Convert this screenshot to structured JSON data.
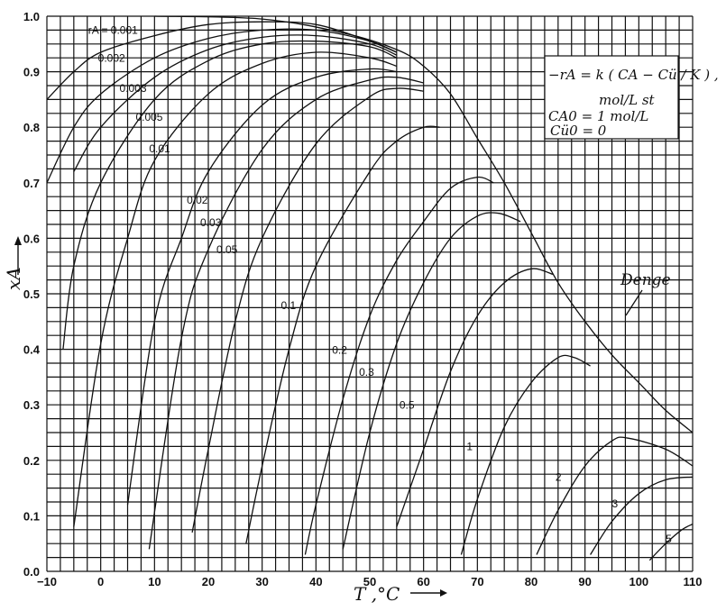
{
  "chart_data": {
    "type": "line",
    "xlabel": "T ,°C",
    "ylabel": "xA",
    "xlim": [
      -10,
      110
    ],
    "ylim": [
      0,
      1.0
    ],
    "xticks": [
      "−10",
      "0",
      "10",
      "20",
      "30",
      "40",
      "50",
      "60",
      "70",
      "80",
      "90",
      "100",
      "110"
    ],
    "yticks": [
      "0.0",
      "0.1",
      "0.2",
      "0.3",
      "0.4",
      "0.5",
      "0.6",
      "0.7",
      "0.8",
      "0.9",
      "1.0"
    ],
    "equilibrium": {
      "label": "Denge",
      "points": [
        [
          10,
          1.0
        ],
        [
          30,
          0.995
        ],
        [
          45,
          0.97
        ],
        [
          55,
          0.94
        ],
        [
          60,
          0.91
        ],
        [
          65,
          0.86
        ],
        [
          70,
          0.78
        ],
        [
          75,
          0.7
        ],
        [
          80,
          0.61
        ],
        [
          85,
          0.52
        ],
        [
          90,
          0.45
        ],
        [
          95,
          0.39
        ],
        [
          100,
          0.34
        ],
        [
          105,
          0.29
        ],
        [
          110,
          0.25
        ]
      ]
    },
    "series": [
      {
        "name": "−rA = 0.001",
        "label": "−rA = 0.001",
        "points": [
          [
            -10,
            0.85
          ],
          [
            -5,
            0.9
          ],
          [
            0,
            0.935
          ],
          [
            10,
            0.965
          ],
          [
            20,
            0.985
          ],
          [
            30,
            0.99
          ],
          [
            40,
            0.985
          ],
          [
            50,
            0.955
          ],
          [
            55,
            0.935
          ]
        ]
      },
      {
        "name": "0.002",
        "label": "0.002",
        "points": [
          [
            -10,
            0.7
          ],
          [
            -5,
            0.8
          ],
          [
            0,
            0.86
          ],
          [
            10,
            0.925
          ],
          [
            20,
            0.96
          ],
          [
            30,
            0.975
          ],
          [
            40,
            0.975
          ],
          [
            50,
            0.955
          ],
          [
            55,
            0.935
          ]
        ]
      },
      {
        "name": "0.003",
        "label": "0.003",
        "points": [
          [
            -5,
            0.72
          ],
          [
            0,
            0.8
          ],
          [
            10,
            0.89
          ],
          [
            20,
            0.94
          ],
          [
            30,
            0.962
          ],
          [
            40,
            0.965
          ],
          [
            50,
            0.95
          ],
          [
            55,
            0.93
          ]
        ]
      },
      {
        "name": "0.005",
        "label": "0.005",
        "points": [
          [
            -7,
            0.4
          ],
          [
            -5,
            0.55
          ],
          [
            0,
            0.7
          ],
          [
            10,
            0.85
          ],
          [
            20,
            0.92
          ],
          [
            30,
            0.95
          ],
          [
            40,
            0.955
          ],
          [
            50,
            0.945
          ],
          [
            55,
            0.925
          ]
        ]
      },
      {
        "name": "0.01",
        "label": "0.01",
        "points": [
          [
            -5,
            0.08
          ],
          [
            0,
            0.41
          ],
          [
            5,
            0.6
          ],
          [
            10,
            0.74
          ],
          [
            20,
            0.86
          ],
          [
            30,
            0.915
          ],
          [
            40,
            0.935
          ],
          [
            50,
            0.925
          ],
          [
            55,
            0.91
          ]
        ]
      },
      {
        "name": "0.02",
        "label": "0.02",
        "points": [
          [
            5,
            0.12
          ],
          [
            10,
            0.45
          ],
          [
            15,
            0.6
          ],
          [
            20,
            0.72
          ],
          [
            30,
            0.84
          ],
          [
            40,
            0.89
          ],
          [
            50,
            0.905
          ],
          [
            55,
            0.9
          ]
        ]
      },
      {
        "name": "0.03",
        "label": "0.03",
        "points": [
          [
            9,
            0.04
          ],
          [
            15,
            0.42
          ],
          [
            20,
            0.58
          ],
          [
            30,
            0.76
          ],
          [
            40,
            0.85
          ],
          [
            50,
            0.885
          ],
          [
            55,
            0.89
          ],
          [
            60,
            0.88
          ]
        ]
      },
      {
        "name": "0.05",
        "label": "0.05",
        "points": [
          [
            17,
            0.07
          ],
          [
            20,
            0.22
          ],
          [
            25,
            0.45
          ],
          [
            30,
            0.6
          ],
          [
            40,
            0.77
          ],
          [
            50,
            0.855
          ],
          [
            55,
            0.87
          ],
          [
            60,
            0.865
          ]
        ]
      },
      {
        "name": "0.1",
        "label": "0.1",
        "points": [
          [
            27,
            0.05
          ],
          [
            30,
            0.19
          ],
          [
            35,
            0.4
          ],
          [
            40,
            0.55
          ],
          [
            50,
            0.72
          ],
          [
            55,
            0.775
          ],
          [
            60,
            0.8
          ],
          [
            63,
            0.8
          ]
        ]
      },
      {
        "name": "0.2",
        "label": "0.2",
        "points": [
          [
            38,
            0.03
          ],
          [
            40,
            0.12
          ],
          [
            45,
            0.31
          ],
          [
            50,
            0.46
          ],
          [
            55,
            0.56
          ],
          [
            60,
            0.63
          ],
          [
            65,
            0.69
          ],
          [
            70,
            0.71
          ],
          [
            73,
            0.7
          ]
        ]
      },
      {
        "name": "0.3",
        "label": "0.3",
        "points": [
          [
            45,
            0.04
          ],
          [
            50,
            0.25
          ],
          [
            55,
            0.41
          ],
          [
            60,
            0.52
          ],
          [
            65,
            0.6
          ],
          [
            70,
            0.64
          ],
          [
            74,
            0.645
          ],
          [
            78,
            0.63
          ]
        ]
      },
      {
        "name": "0.5",
        "label": "0.5",
        "points": [
          [
            55,
            0.08
          ],
          [
            60,
            0.22
          ],
          [
            65,
            0.36
          ],
          [
            70,
            0.46
          ],
          [
            75,
            0.52
          ],
          [
            80,
            0.545
          ],
          [
            84,
            0.535
          ]
        ]
      },
      {
        "name": "1",
        "label": "1",
        "points": [
          [
            67,
            0.03
          ],
          [
            70,
            0.13
          ],
          [
            75,
            0.26
          ],
          [
            80,
            0.34
          ],
          [
            85,
            0.385
          ],
          [
            88,
            0.385
          ],
          [
            91,
            0.37
          ]
        ]
      },
      {
        "name": "2",
        "label": "2",
        "points": [
          [
            81,
            0.03
          ],
          [
            85,
            0.11
          ],
          [
            90,
            0.19
          ],
          [
            95,
            0.235
          ],
          [
            98,
            0.24
          ],
          [
            105,
            0.22
          ],
          [
            110,
            0.19
          ]
        ]
      },
      {
        "name": "3",
        "label": "3",
        "points": [
          [
            91,
            0.03
          ],
          [
            95,
            0.09
          ],
          [
            100,
            0.14
          ],
          [
            105,
            0.165
          ],
          [
            110,
            0.17
          ]
        ]
      },
      {
        "name": "5",
        "label": "5",
        "points": [
          [
            102,
            0.02
          ],
          [
            105,
            0.05
          ],
          [
            108,
            0.075
          ],
          [
            110,
            0.085
          ]
        ]
      }
    ],
    "annotation": {
      "rate": "−rA = k ( CA − Cü / K ) ,",
      "rate_units": "mol/L st",
      "ca0": "CA0 = 1 mol/L",
      "cu0": "Cü0 = 0"
    },
    "grid": true
  }
}
